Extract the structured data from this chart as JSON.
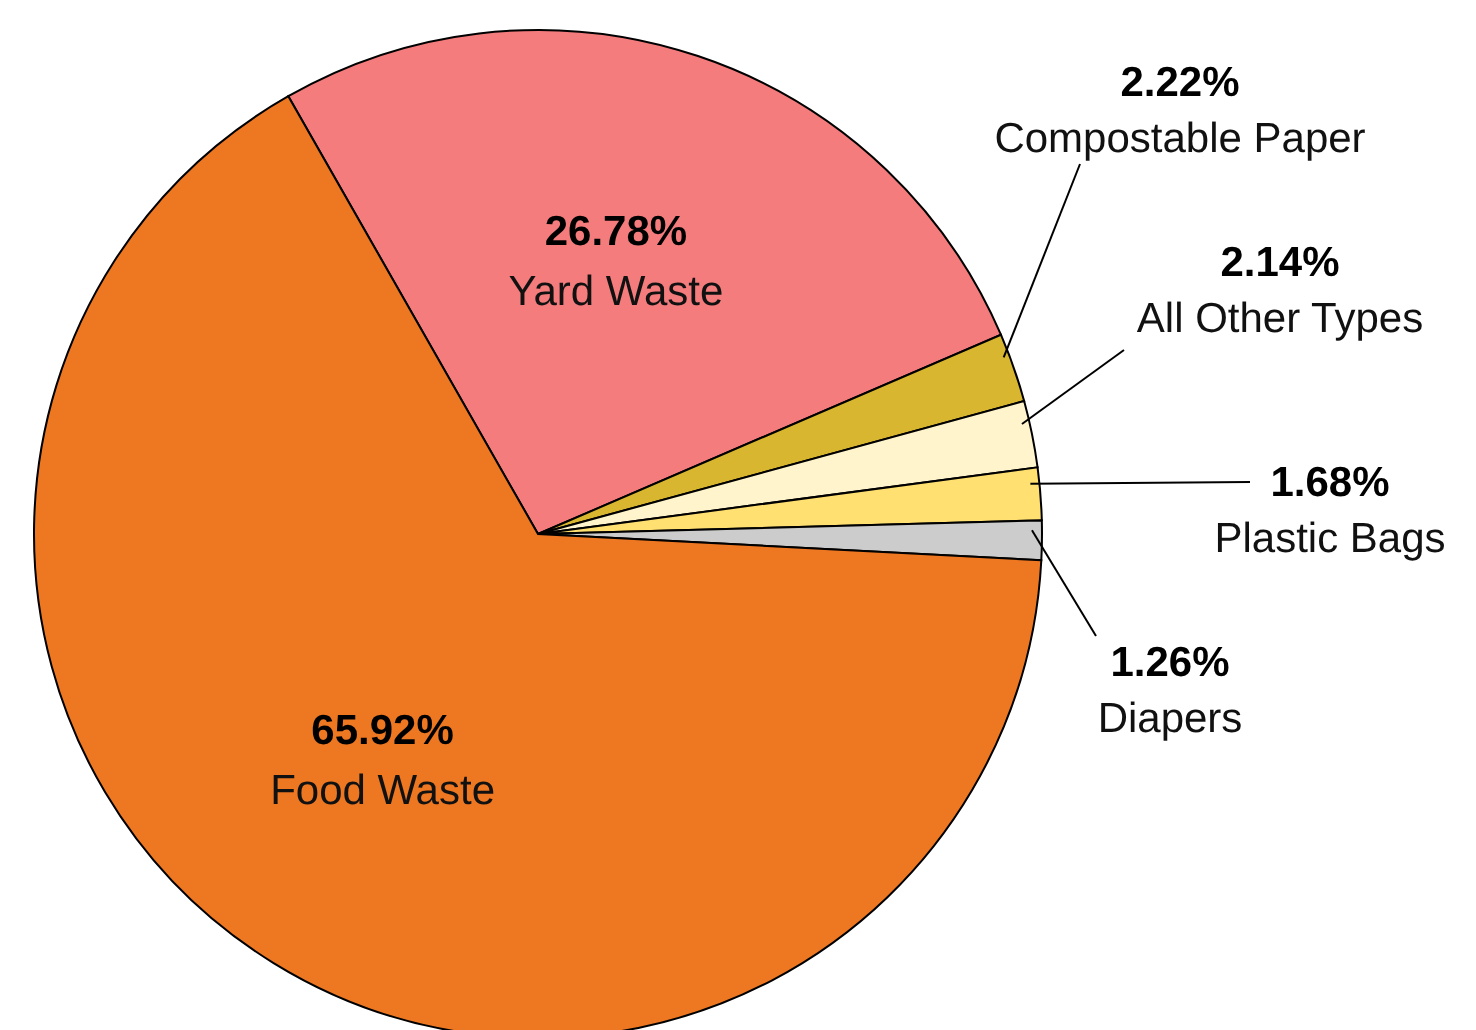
{
  "chart_data": {
    "type": "pie",
    "categories": [
      "Yard Waste",
      "Compostable Paper",
      "All Other Types",
      "Plastic Bags",
      "Diapers",
      "Food Waste"
    ],
    "values": [
      26.78,
      2.22,
      2.14,
      1.68,
      1.26,
      65.92
    ],
    "colors": [
      "#f47c7c",
      "#d9b62f",
      "#fff4cc",
      "#ffe070",
      "#cccccc",
      "#ee7722"
    ],
    "value_labels": [
      "26.78%",
      "2.22%",
      "2.14%",
      "1.68%",
      "1.26%",
      "65.92%"
    ],
    "legend": false
  }
}
